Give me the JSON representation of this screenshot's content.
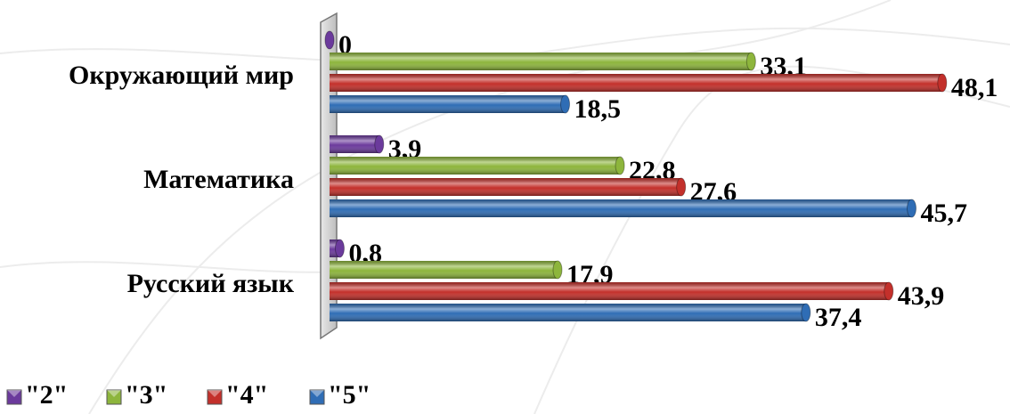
{
  "chart_data": {
    "type": "bar",
    "orientation": "horizontal",
    "categories": [
      "Окружающий мир",
      "Математика",
      "Русский язык"
    ],
    "series": [
      {
        "name": "\"2\"",
        "color": "#6b3a9c",
        "values": [
          0,
          3.9,
          0.8
        ],
        "value_labels": [
          "0",
          "3,9",
          "0,8"
        ]
      },
      {
        "name": "\"3\"",
        "color": "#8db53c",
        "values": [
          33.1,
          22.8,
          17.9
        ],
        "value_labels": [
          "33,1",
          "22,8",
          "17,9"
        ]
      },
      {
        "name": "\"4\"",
        "color": "#c3302b",
        "values": [
          48.1,
          27.6,
          43.9
        ],
        "value_labels": [
          "48,1",
          "27,6",
          "43,9"
        ]
      },
      {
        "name": "\"5\"",
        "color": "#2f6db5",
        "values": [
          18.5,
          45.7,
          37.4
        ],
        "value_labels": [
          "18,5",
          "45,7",
          "37,4"
        ]
      }
    ],
    "legend": "bottom"
  }
}
